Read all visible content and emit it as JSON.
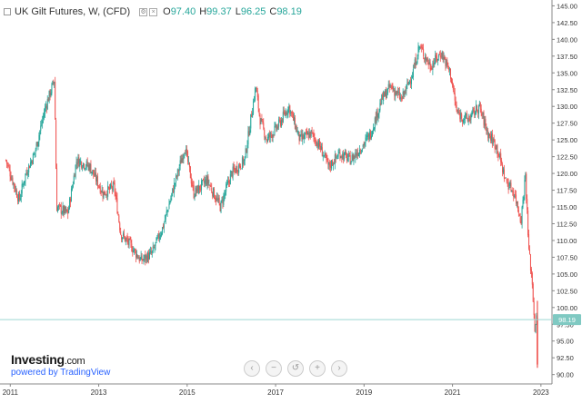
{
  "header": {
    "title": "UK Gilt Futures, W, (CFD)",
    "open_label": "O",
    "open": "97.40",
    "high_label": "H",
    "high": "99.37",
    "low_label": "L",
    "low": "96.25",
    "close_label": "C",
    "close": "98.19"
  },
  "branding": {
    "name": "Investing",
    "suffix": ".com",
    "powered_by": "powered by TradingView"
  },
  "zoom_controls": [
    "‹",
    "−",
    "↺",
    "+",
    "›"
  ],
  "colors": {
    "up": "#26a69a",
    "down": "#ef5350",
    "price_line": "#9ed8d3",
    "price_badge": "#7fc9c2"
  },
  "chart_data": {
    "type": "candlestick",
    "x_tick_labels": [
      "2011",
      "2013",
      "2015",
      "2017",
      "2019",
      "2021",
      "2023"
    ],
    "y_tick_labels": [
      "90.00",
      "92.50",
      "95.00",
      "97.50",
      "100.00",
      "102.50",
      "105.00",
      "107.50",
      "110.00",
      "112.50",
      "115.00",
      "117.50",
      "120.00",
      "122.50",
      "125.00",
      "127.50",
      "130.00",
      "132.50",
      "135.00",
      "137.50",
      "140.00",
      "142.50",
      "145.00"
    ],
    "ylim": [
      88.6,
      145.6
    ],
    "xlim": [
      2010.85,
      2023.25
    ],
    "current_price": "98.19",
    "approx_close_path": [
      [
        2010.9,
        122
      ],
      [
        2011.2,
        116
      ],
      [
        2011.35,
        120
      ],
      [
        2011.55,
        123
      ],
      [
        2011.8,
        130
      ],
      [
        2012.0,
        134
      ],
      [
        2012.05,
        115
      ],
      [
        2012.3,
        114
      ],
      [
        2012.5,
        122
      ],
      [
        2012.8,
        121
      ],
      [
        2013.1,
        117
      ],
      [
        2013.35,
        118
      ],
      [
        2013.5,
        111
      ],
      [
        2013.75,
        109
      ],
      [
        2013.95,
        107
      ],
      [
        2014.2,
        108
      ],
      [
        2014.45,
        112
      ],
      [
        2014.7,
        118
      ],
      [
        2014.95,
        124
      ],
      [
        2015.15,
        117
      ],
      [
        2015.45,
        119
      ],
      [
        2015.75,
        115
      ],
      [
        2016.0,
        120
      ],
      [
        2016.3,
        122
      ],
      [
        2016.55,
        133
      ],
      [
        2016.65,
        128
      ],
      [
        2016.8,
        125
      ],
      [
        2017.05,
        127
      ],
      [
        2017.3,
        130
      ],
      [
        2017.55,
        125
      ],
      [
        2017.8,
        126
      ],
      [
        2018.0,
        124
      ],
      [
        2018.2,
        121
      ],
      [
        2018.45,
        123
      ],
      [
        2018.7,
        122
      ],
      [
        2018.95,
        124
      ],
      [
        2019.15,
        126
      ],
      [
        2019.4,
        131
      ],
      [
        2019.6,
        133
      ],
      [
        2019.85,
        131
      ],
      [
        2020.1,
        135
      ],
      [
        2020.25,
        139
      ],
      [
        2020.5,
        136
      ],
      [
        2020.75,
        138
      ],
      [
        2020.95,
        135
      ],
      [
        2021.1,
        129
      ],
      [
        2021.35,
        128
      ],
      [
        2021.6,
        130
      ],
      [
        2021.8,
        126
      ],
      [
        2022.0,
        124
      ],
      [
        2022.2,
        119
      ],
      [
        2022.4,
        117
      ],
      [
        2022.55,
        113
      ],
      [
        2022.65,
        120
      ],
      [
        2022.72,
        109
      ],
      [
        2022.8,
        104
      ],
      [
        2022.86,
        97
      ],
      [
        2022.9,
        98.19
      ]
    ]
  }
}
